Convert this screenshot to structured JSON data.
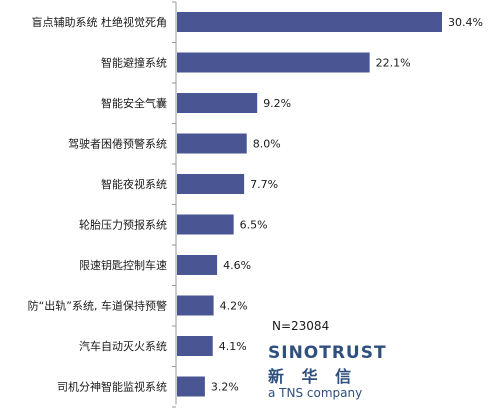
{
  "chart_data": {
    "type": "bar",
    "orientation": "horizontal",
    "categories": [
      "盲点辅助系统  杜绝视觉死角",
      "智能避撞系统",
      "智能安全气囊",
      "驾驶者困倦预警系统",
      "智能夜视系统",
      "轮胎压力预报系统",
      "限速钥匙控制车速",
      "防“出轨”系统, 车道保持预警",
      "汽车自动灭火系统",
      "司机分神智能监视系统"
    ],
    "values": [
      30.4,
      22.1,
      9.2,
      8.0,
      7.7,
      6.5,
      4.6,
      4.2,
      4.1,
      3.2
    ],
    "value_labels": [
      "30.4%",
      "22.1%",
      "9.2%",
      "8.0%",
      "7.7%",
      "6.5%",
      "4.6%",
      "4.2%",
      "4.1%",
      "3.2%"
    ],
    "xlim": [
      0,
      30.4
    ],
    "bar_color": "#4a5694",
    "grid": false
  },
  "annotation": {
    "sample_size": "N=23084"
  },
  "logo": {
    "name": "SINOTRUST",
    "name_cn": "新 华 信",
    "tagline": "a TNS company",
    "color": "#2f4f7f"
  }
}
